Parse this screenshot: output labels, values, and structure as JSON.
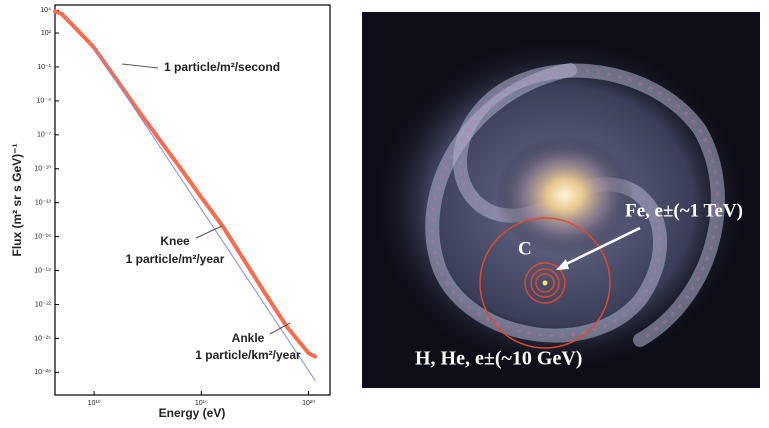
{
  "chart_data": {
    "type": "line",
    "log_x": true,
    "log_y": true,
    "xlabel": "Energy (eV)",
    "ylabel": "Flux (m² sr s GeV)⁻¹",
    "xlim": [
      150000000,
      1e+21
    ],
    "ylim": [
      1e-30,
      30000
    ],
    "xticks": [
      {
        "value": 10000000000.0,
        "label": "10¹⁰"
      },
      {
        "value": 1000000000000000.0,
        "label": "10¹⁵"
      },
      {
        "value": 1e+20,
        "label": "10²⁰"
      }
    ],
    "yticks": [
      {
        "value": 10000,
        "label": "10⁴"
      },
      {
        "value": 100,
        "label": "10²"
      },
      {
        "value": 0.1,
        "label": "10⁻¹"
      },
      {
        "value": 0.0001,
        "label": "10⁻⁴"
      },
      {
        "value": 1e-07,
        "label": "10⁻⁷"
      },
      {
        "value": 1e-10,
        "label": "10⁻¹⁰"
      },
      {
        "value": 1e-13,
        "label": "10⁻¹³"
      },
      {
        "value": 1e-16,
        "label": "10⁻¹⁶"
      },
      {
        "value": 1e-19,
        "label": "10⁻¹⁹"
      },
      {
        "value": 1e-22,
        "label": "10⁻²²"
      },
      {
        "value": 1e-25,
        "label": "10⁻²⁵"
      },
      {
        "value": 1e-28,
        "label": "10⁻²⁸"
      }
    ],
    "series": [
      {
        "color": "#ff6a4d",
        "width": 4,
        "x": [
          150000000,
          300000000,
          1000000000,
          10000000000.0,
          100000000000.0,
          1000000000000.0,
          10000000000000.0,
          100000000000000.0,
          1000000000000000.0,
          1e+16,
          1e+17,
          1e+18,
          1e+19,
          1e+20,
          2e+20
        ],
        "values": [
          8000,
          5000,
          500,
          5,
          0.01,
          2e-05,
          5e-08,
          1.3e-10,
          3e-13,
          8e-16,
          8e-19,
          8e-22,
          1e-24,
          5e-27,
          2.5e-27
        ]
      },
      {
        "color": "#7f8fe0",
        "width": 1,
        "x": [
          10000000000.0,
          2e+20
        ],
        "values": [
          5,
          2e-29
        ]
      }
    ],
    "annotations": [
      "1 particle/m²/second",
      "Knee",
      "1 particle/m²/year",
      "Ankle",
      "1 particle/km²/year"
    ]
  },
  "image": {
    "labels": [
      "Fe, e±(~1 TeV)",
      "C",
      "H, He, e±(~10 GeV)"
    ]
  }
}
